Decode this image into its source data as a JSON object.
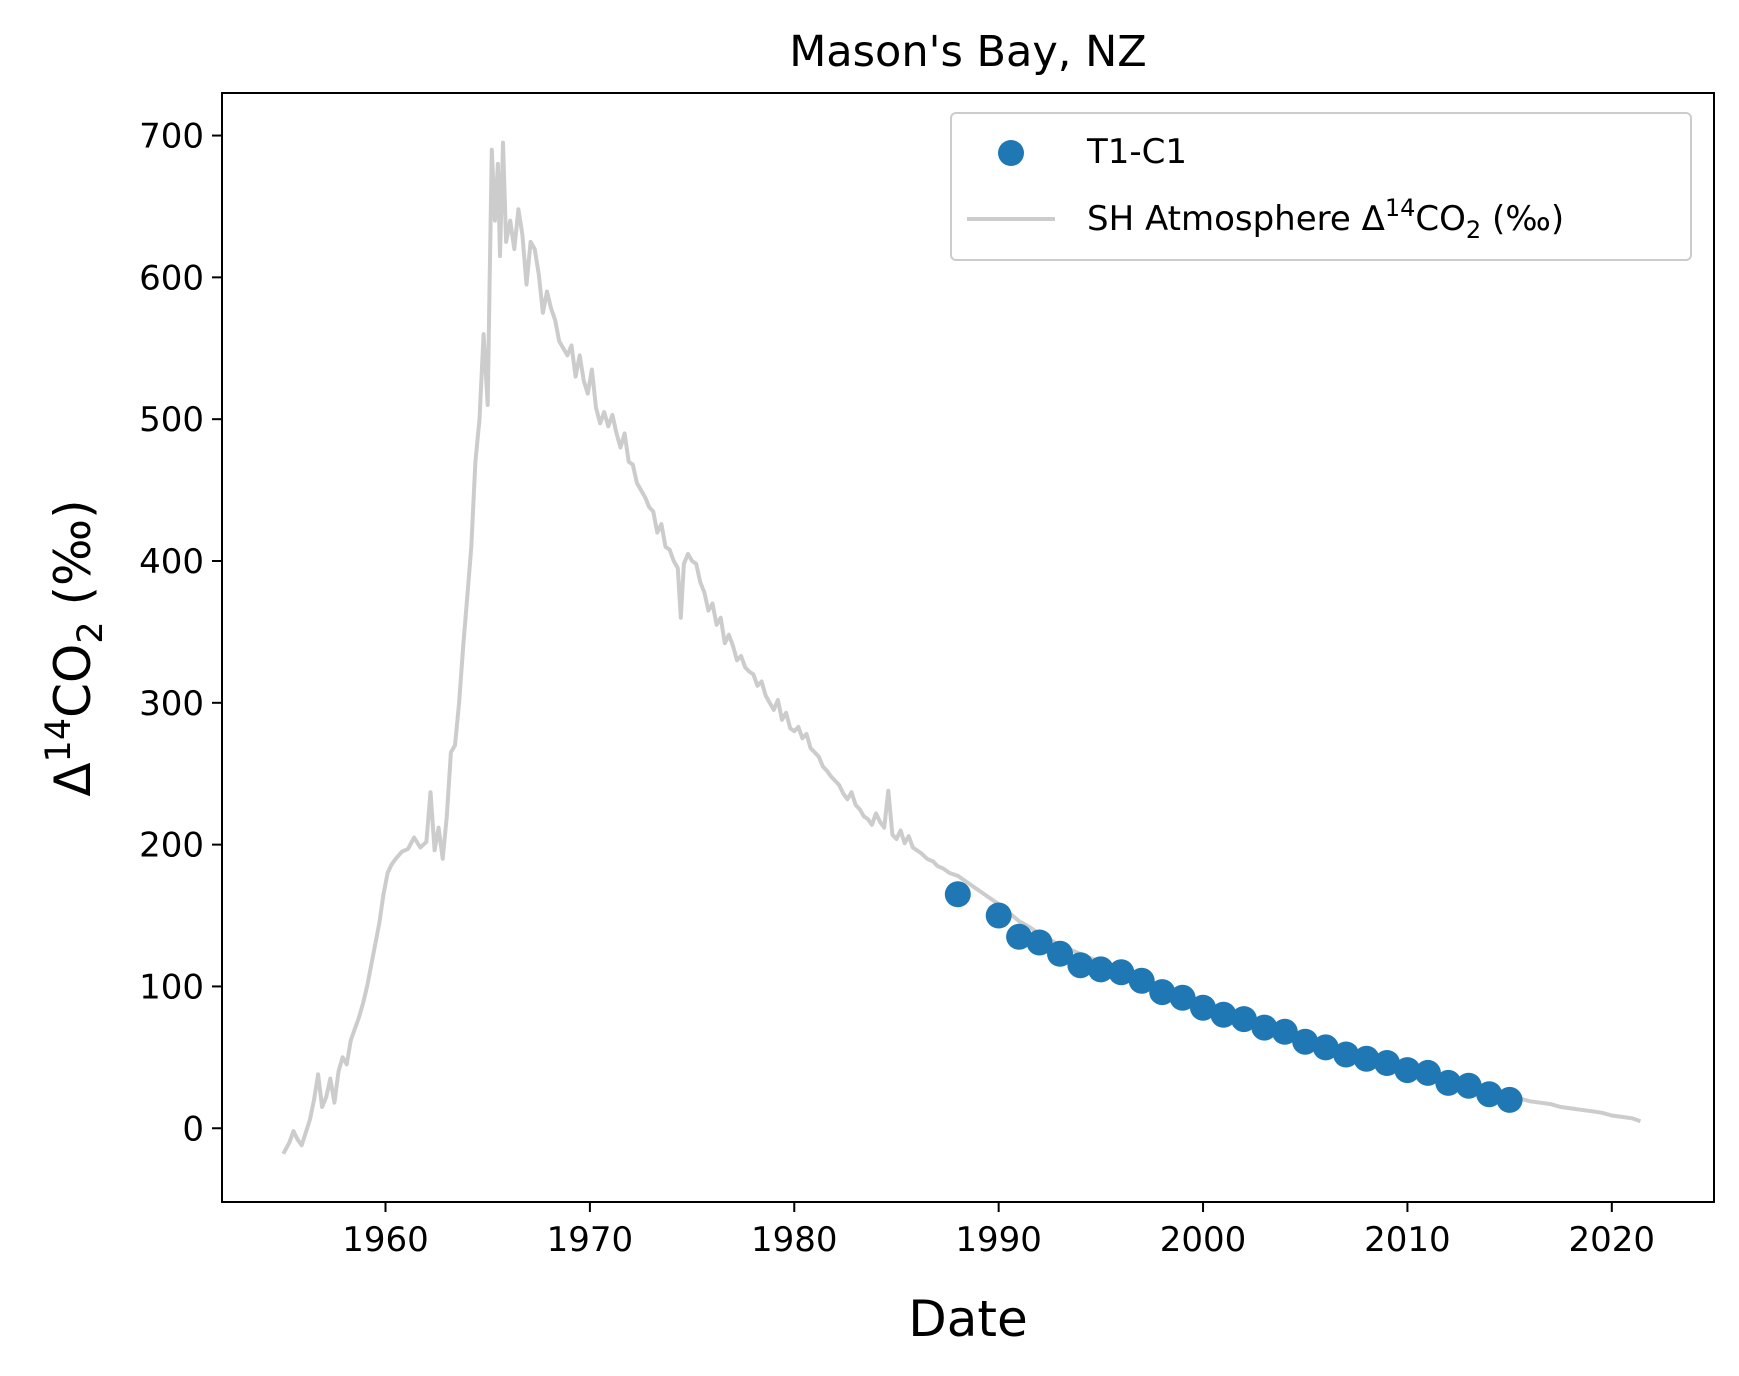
{
  "chart_data": {
    "type": "scatter",
    "title": "Mason's Bay, NZ",
    "xlabel": "Date",
    "ylabel_parts": {
      "delta": "Δ",
      "sup": "14",
      "co": "CO",
      "sub": "2",
      "unit": " (‰)"
    },
    "xlim": [
      1952,
      2025
    ],
    "ylim": [
      -52,
      730
    ],
    "xticks": [
      1960,
      1970,
      1980,
      1990,
      2000,
      2010,
      2020
    ],
    "yticks": [
      0,
      100,
      200,
      300,
      400,
      500,
      600,
      700
    ],
    "grid": false,
    "legend_position": "top-right",
    "colors": {
      "samples": "#1f77b4",
      "atmosphere": "#cccccc"
    },
    "series": [
      {
        "name": "T1-C1",
        "kind": "scatter",
        "points": [
          [
            1988,
            165
          ],
          [
            1990,
            150
          ],
          [
            1991,
            135
          ],
          [
            1992,
            131
          ],
          [
            1993,
            123
          ],
          [
            1994,
            115
          ],
          [
            1995,
            112
          ],
          [
            1996,
            110
          ],
          [
            1997,
            104
          ],
          [
            1998,
            96
          ],
          [
            1999,
            92
          ],
          [
            2000,
            85
          ],
          [
            2001,
            80
          ],
          [
            2002,
            77
          ],
          [
            2003,
            71
          ],
          [
            2004,
            68
          ],
          [
            2005,
            61
          ],
          [
            2006,
            57
          ],
          [
            2007,
            52
          ],
          [
            2008,
            49
          ],
          [
            2009,
            46
          ],
          [
            2010,
            41
          ],
          [
            2011,
            39
          ],
          [
            2012,
            32
          ],
          [
            2013,
            30
          ],
          [
            2014,
            24
          ],
          [
            2015,
            20
          ]
        ]
      },
      {
        "name_parts": {
          "pre": "SH Atmosphere Δ",
          "sup": "14",
          "co": "CO",
          "sub": "2",
          "post": " (‰)"
        },
        "kind": "line",
        "points": [
          [
            1955.0,
            -18
          ],
          [
            1955.3,
            -10
          ],
          [
            1955.5,
            -2
          ],
          [
            1955.7,
            -8
          ],
          [
            1955.9,
            -12
          ],
          [
            1956.1,
            -3
          ],
          [
            1956.3,
            6
          ],
          [
            1956.5,
            20
          ],
          [
            1956.7,
            38
          ],
          [
            1956.9,
            15
          ],
          [
            1957.1,
            22
          ],
          [
            1957.3,
            35
          ],
          [
            1957.5,
            18
          ],
          [
            1957.7,
            40
          ],
          [
            1957.9,
            50
          ],
          [
            1958.1,
            45
          ],
          [
            1958.3,
            62
          ],
          [
            1958.5,
            70
          ],
          [
            1958.7,
            78
          ],
          [
            1958.9,
            88
          ],
          [
            1959.1,
            100
          ],
          [
            1959.3,
            115
          ],
          [
            1959.5,
            130
          ],
          [
            1959.7,
            145
          ],
          [
            1959.9,
            165
          ],
          [
            1960.1,
            180
          ],
          [
            1960.3,
            186
          ],
          [
            1960.5,
            190
          ],
          [
            1960.8,
            195
          ],
          [
            1961.1,
            197
          ],
          [
            1961.4,
            205
          ],
          [
            1961.7,
            198
          ],
          [
            1962.0,
            202
          ],
          [
            1962.2,
            237
          ],
          [
            1962.4,
            196
          ],
          [
            1962.6,
            212
          ],
          [
            1962.8,
            190
          ],
          [
            1963.0,
            220
          ],
          [
            1963.2,
            265
          ],
          [
            1963.4,
            270
          ],
          [
            1963.6,
            300
          ],
          [
            1963.8,
            340
          ],
          [
            1964.0,
            375
          ],
          [
            1964.2,
            410
          ],
          [
            1964.4,
            470
          ],
          [
            1964.6,
            500
          ],
          [
            1964.8,
            560
          ],
          [
            1965.0,
            510
          ],
          [
            1965.1,
            600
          ],
          [
            1965.2,
            690
          ],
          [
            1965.35,
            640
          ],
          [
            1965.5,
            680
          ],
          [
            1965.6,
            615
          ],
          [
            1965.75,
            695
          ],
          [
            1965.9,
            625
          ],
          [
            1966.1,
            640
          ],
          [
            1966.3,
            620
          ],
          [
            1966.5,
            648
          ],
          [
            1966.7,
            630
          ],
          [
            1966.9,
            595
          ],
          [
            1967.1,
            625
          ],
          [
            1967.3,
            620
          ],
          [
            1967.5,
            602
          ],
          [
            1967.7,
            575
          ],
          [
            1967.9,
            590
          ],
          [
            1968.1,
            578
          ],
          [
            1968.3,
            570
          ],
          [
            1968.5,
            555
          ],
          [
            1968.7,
            550
          ],
          [
            1968.9,
            545
          ],
          [
            1969.1,
            552
          ],
          [
            1969.3,
            530
          ],
          [
            1969.5,
            545
          ],
          [
            1969.7,
            527
          ],
          [
            1969.9,
            518
          ],
          [
            1970.1,
            535
          ],
          [
            1970.3,
            508
          ],
          [
            1970.5,
            497
          ],
          [
            1970.7,
            505
          ],
          [
            1970.9,
            495
          ],
          [
            1971.1,
            503
          ],
          [
            1971.3,
            490
          ],
          [
            1971.5,
            480
          ],
          [
            1971.7,
            490
          ],
          [
            1971.9,
            470
          ],
          [
            1972.1,
            468
          ],
          [
            1972.3,
            455
          ],
          [
            1972.5,
            450
          ],
          [
            1972.7,
            445
          ],
          [
            1972.9,
            438
          ],
          [
            1973.1,
            435
          ],
          [
            1973.3,
            420
          ],
          [
            1973.5,
            426
          ],
          [
            1973.7,
            410
          ],
          [
            1973.9,
            408
          ],
          [
            1974.1,
            400
          ],
          [
            1974.3,
            395
          ],
          [
            1974.45,
            360
          ],
          [
            1974.6,
            398
          ],
          [
            1974.8,
            405
          ],
          [
            1975.0,
            400
          ],
          [
            1975.2,
            398
          ],
          [
            1975.4,
            385
          ],
          [
            1975.6,
            378
          ],
          [
            1975.8,
            365
          ],
          [
            1976.0,
            370
          ],
          [
            1976.2,
            355
          ],
          [
            1976.4,
            360
          ],
          [
            1976.6,
            342
          ],
          [
            1976.8,
            348
          ],
          [
            1977.0,
            340
          ],
          [
            1977.2,
            330
          ],
          [
            1977.4,
            333
          ],
          [
            1977.6,
            325
          ],
          [
            1977.8,
            322
          ],
          [
            1978.0,
            320
          ],
          [
            1978.2,
            312
          ],
          [
            1978.4,
            315
          ],
          [
            1978.6,
            305
          ],
          [
            1978.8,
            300
          ],
          [
            1979.0,
            295
          ],
          [
            1979.2,
            302
          ],
          [
            1979.4,
            288
          ],
          [
            1979.6,
            293
          ],
          [
            1979.8,
            282
          ],
          [
            1980.0,
            280
          ],
          [
            1980.2,
            283
          ],
          [
            1980.4,
            275
          ],
          [
            1980.6,
            278
          ],
          [
            1980.8,
            268
          ],
          [
            1981.0,
            265
          ],
          [
            1981.2,
            262
          ],
          [
            1981.4,
            255
          ],
          [
            1981.6,
            252
          ],
          [
            1981.8,
            248
          ],
          [
            1982.0,
            245
          ],
          [
            1982.2,
            242
          ],
          [
            1982.4,
            236
          ],
          [
            1982.6,
            232
          ],
          [
            1982.8,
            237
          ],
          [
            1983.0,
            228
          ],
          [
            1983.2,
            225
          ],
          [
            1983.4,
            220
          ],
          [
            1983.6,
            218
          ],
          [
            1983.8,
            214
          ],
          [
            1984.0,
            222
          ],
          [
            1984.2,
            216
          ],
          [
            1984.4,
            212
          ],
          [
            1984.6,
            238
          ],
          [
            1984.8,
            207
          ],
          [
            1985.0,
            204
          ],
          [
            1985.2,
            210
          ],
          [
            1985.4,
            201
          ],
          [
            1985.6,
            206
          ],
          [
            1985.8,
            198
          ],
          [
            1986.0,
            196
          ],
          [
            1986.2,
            194
          ],
          [
            1986.5,
            190
          ],
          [
            1986.8,
            188
          ],
          [
            1987.0,
            185
          ],
          [
            1987.3,
            183
          ],
          [
            1987.6,
            180
          ],
          [
            1988.0,
            178
          ],
          [
            1988.5,
            173
          ],
          [
            1989.0,
            168
          ],
          [
            1989.5,
            163
          ],
          [
            1990.0,
            158
          ],
          [
            1990.5,
            152
          ],
          [
            1991.0,
            146
          ],
          [
            1991.5,
            142
          ],
          [
            1992.0,
            137
          ],
          [
            1992.5,
            133
          ],
          [
            1993.0,
            129
          ],
          [
            1993.5,
            126
          ],
          [
            1994.0,
            123
          ],
          [
            1994.5,
            120
          ],
          [
            1995.0,
            117
          ],
          [
            1995.5,
            114
          ],
          [
            1996.0,
            111
          ],
          [
            1996.5,
            108
          ],
          [
            1997.0,
            105
          ],
          [
            1997.5,
            102
          ],
          [
            1998.0,
            99
          ],
          [
            1998.5,
            96
          ],
          [
            1999.0,
            93
          ],
          [
            1999.5,
            90
          ],
          [
            2000.0,
            88
          ],
          [
            2000.5,
            85
          ],
          [
            2001.0,
            82
          ],
          [
            2001.5,
            80
          ],
          [
            2002.0,
            77
          ],
          [
            2002.5,
            74
          ],
          [
            2003.0,
            72
          ],
          [
            2003.5,
            69
          ],
          [
            2004.0,
            67
          ],
          [
            2004.5,
            64
          ],
          [
            2005.0,
            62
          ],
          [
            2005.5,
            59
          ],
          [
            2006.0,
            57
          ],
          [
            2006.5,
            55
          ],
          [
            2007.0,
            53
          ],
          [
            2007.5,
            50
          ],
          [
            2008.0,
            48
          ],
          [
            2008.5,
            46
          ],
          [
            2009.0,
            44
          ],
          [
            2009.5,
            42
          ],
          [
            2010.0,
            40
          ],
          [
            2010.5,
            38
          ],
          [
            2011.0,
            36
          ],
          [
            2011.5,
            34
          ],
          [
            2012.0,
            32
          ],
          [
            2012.5,
            30
          ],
          [
            2013.0,
            29
          ],
          [
            2013.5,
            27
          ],
          [
            2014.0,
            25
          ],
          [
            2014.5,
            24
          ],
          [
            2015.0,
            22
          ],
          [
            2015.5,
            21
          ],
          [
            2016.0,
            19
          ],
          [
            2016.5,
            18
          ],
          [
            2017.0,
            17
          ],
          [
            2017.5,
            15
          ],
          [
            2018.0,
            14
          ],
          [
            2018.5,
            13
          ],
          [
            2019.0,
            12
          ],
          [
            2019.5,
            11
          ],
          [
            2020.0,
            9
          ],
          [
            2020.5,
            8
          ],
          [
            2021.0,
            7
          ],
          [
            2021.4,
            5
          ]
        ]
      }
    ]
  }
}
